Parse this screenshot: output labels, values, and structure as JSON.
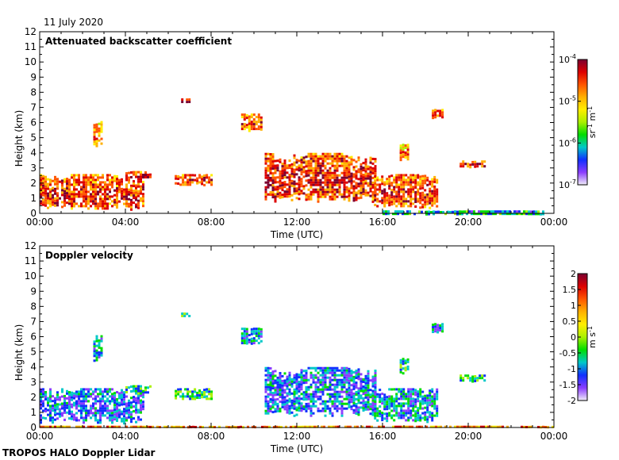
{
  "date_label": "11 July 2020",
  "footer": "TROPOS HALO Doppler Lidar",
  "colors": {
    "backscatter_scale": [
      "#f0eef8",
      "#8a3cff",
      "#1030ff",
      "#00c8c8",
      "#00dd00",
      "#aaf000",
      "#ffee00",
      "#ffb000",
      "#ff5500",
      "#dd0000",
      "#7a0030"
    ],
    "velocity_scale": [
      "#f0eef8",
      "#8a3cff",
      "#1030ff",
      "#00c8c8",
      "#00dd00",
      "#aaf000",
      "#ffee00",
      "#ffb000",
      "#ff5500",
      "#dd0000",
      "#7a0030"
    ]
  },
  "chart_data": [
    {
      "type": "heatmap",
      "title": "Attenuated backscatter coefficient",
      "xlabel": "Time (UTC)",
      "ylabel": "Height (km)",
      "xlim": [
        "00:00",
        "00:00"
      ],
      "ylim": [
        0,
        12
      ],
      "xticks": [
        "00:00",
        "04:00",
        "08:00",
        "12:00",
        "16:00",
        "20:00",
        "00:00"
      ],
      "yticks": [
        "0",
        "1",
        "2",
        "3",
        "4",
        "5",
        "6",
        "7",
        "8",
        "9",
        "10",
        "11",
        "12"
      ],
      "colorbar": {
        "label_parts": [
          "sr",
          "-1",
          " m",
          "-1"
        ],
        "ticks": [
          {
            "base": "10",
            "exp": "-4",
            "value": 0.0001
          },
          {
            "base": "10",
            "exp": "-5",
            "value": 1e-05
          },
          {
            "base": "10",
            "exp": "-6",
            "value": 1e-06
          },
          {
            "base": "10",
            "exp": "-7",
            "value": 1e-07
          }
        ],
        "scale": "log",
        "range": [
          1e-07,
          0.0001
        ]
      },
      "regions": [
        {
          "desc": "boundary layer aerosol, morning",
          "t": [
            0.0,
            4.8
          ],
          "h": [
            0.3,
            2.6
          ],
          "level": 0.75
        },
        {
          "desc": "aerosol layer",
          "t": [
            4.0,
            5.2
          ],
          "h": [
            2.3,
            2.8
          ],
          "level": 0.8
        },
        {
          "desc": "aerosol layer",
          "t": [
            6.3,
            8.0
          ],
          "h": [
            1.9,
            2.6
          ],
          "level": 0.75
        },
        {
          "desc": "small cloud",
          "t": [
            2.5,
            2.9
          ],
          "h": [
            4.4,
            6.1
          ],
          "level": 0.65
        },
        {
          "desc": "small cloud",
          "t": [
            6.6,
            7.0
          ],
          "h": [
            7.3,
            7.6
          ],
          "level": 0.92
        },
        {
          "desc": "cloud",
          "t": [
            9.4,
            10.4
          ],
          "h": [
            5.5,
            6.6
          ],
          "level": 0.7
        },
        {
          "desc": "cloud band afternoon",
          "t": [
            10.5,
            15.7
          ],
          "h": [
            0.8,
            4.0
          ],
          "level": 0.78
        },
        {
          "desc": "convective layer",
          "t": [
            15.6,
            18.6
          ],
          "h": [
            0.4,
            2.6
          ],
          "level": 0.75
        },
        {
          "desc": "small cloud",
          "t": [
            16.8,
            17.2
          ],
          "h": [
            3.5,
            4.6
          ],
          "level": 0.65
        },
        {
          "desc": "small cloud",
          "t": [
            18.3,
            18.8
          ],
          "h": [
            6.3,
            6.9
          ],
          "level": 0.7
        },
        {
          "desc": "aerosol layer evening",
          "t": [
            19.6,
            20.8
          ],
          "h": [
            3.1,
            3.5
          ],
          "level": 0.8
        },
        {
          "desc": "near-surface signal",
          "t": [
            16.0,
            23.5
          ],
          "h": [
            0.0,
            0.2
          ],
          "level": 0.3
        }
      ]
    },
    {
      "type": "heatmap",
      "title": "Doppler velocity",
      "xlabel": "Time (UTC)",
      "ylabel": "Height (km)",
      "xlim": [
        "00:00",
        "00:00"
      ],
      "ylim": [
        0,
        12
      ],
      "xticks": [
        "00:00",
        "04:00",
        "08:00",
        "12:00",
        "16:00",
        "20:00",
        "00:00"
      ],
      "yticks": [
        "0",
        "1",
        "2",
        "3",
        "4",
        "5",
        "6",
        "7",
        "8",
        "9",
        "10",
        "11",
        "12"
      ],
      "colorbar": {
        "label_parts": [
          "m s",
          "-1"
        ],
        "ticks": [
          "2",
          "1.5",
          "1",
          "0.5",
          "0",
          "-0.5",
          "-1",
          "-1.5",
          "-2"
        ],
        "scale": "linear",
        "range": [
          -2,
          2
        ]
      },
      "regions": [
        {
          "desc": "boundary layer, downdrafts",
          "t": [
            0.0,
            4.8
          ],
          "h": [
            0.3,
            2.6
          ],
          "value": -1.2
        },
        {
          "desc": "aerosol layer",
          "t": [
            4.0,
            5.2
          ],
          "h": [
            2.3,
            2.8
          ],
          "value": -0.6
        },
        {
          "desc": "aerosol layer",
          "t": [
            6.3,
            8.0
          ],
          "h": [
            1.9,
            2.6
          ],
          "value": -0.5
        },
        {
          "desc": "small cloud",
          "t": [
            2.5,
            2.9
          ],
          "h": [
            4.4,
            6.1
          ],
          "value": -0.8
        },
        {
          "desc": "small cloud",
          "t": [
            6.6,
            7.0
          ],
          "h": [
            7.3,
            7.6
          ],
          "value": -0.4
        },
        {
          "desc": "cloud",
          "t": [
            9.4,
            10.4
          ],
          "h": [
            5.5,
            6.6
          ],
          "value": -0.9
        },
        {
          "desc": "cloud band afternoon",
          "t": [
            10.5,
            15.7
          ],
          "h": [
            0.8,
            4.0
          ],
          "value": -1.1
        },
        {
          "desc": "convective layer",
          "t": [
            15.6,
            18.6
          ],
          "h": [
            0.4,
            2.6
          ],
          "value": -0.9
        },
        {
          "desc": "small cloud",
          "t": [
            16.8,
            17.2
          ],
          "h": [
            3.5,
            4.6
          ],
          "value": -0.5
        },
        {
          "desc": "small cloud",
          "t": [
            18.3,
            18.8
          ],
          "h": [
            6.3,
            6.9
          ],
          "value": -1.0
        },
        {
          "desc": "aerosol layer evening",
          "t": [
            19.6,
            20.8
          ],
          "h": [
            3.1,
            3.5
          ],
          "value": -0.5
        },
        {
          "desc": "near-surface signal",
          "t": [
            0.0,
            24.0
          ],
          "h": [
            0.0,
            0.12
          ],
          "value": 1.0
        }
      ]
    }
  ]
}
